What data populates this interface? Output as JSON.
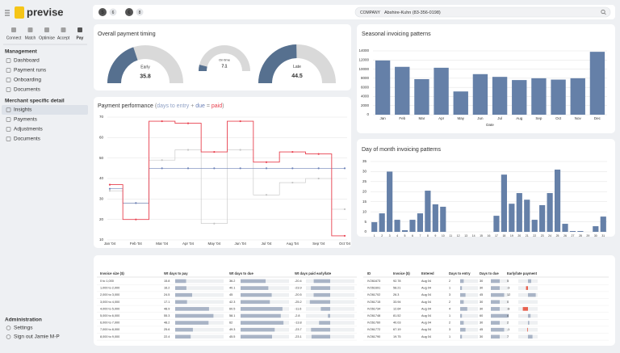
{
  "sidebar": {
    "logo": "previse",
    "steps": [
      "Connect",
      "Match",
      "Optimise",
      "Accept",
      "Pay"
    ],
    "active_step": 4,
    "sections": [
      {
        "title": "Management",
        "items": [
          "Dashboard",
          "Payment runs",
          "Onboarding",
          "Documents"
        ]
      },
      {
        "title": "Merchant specific detail",
        "items": [
          "Insights",
          "Payments",
          "Adjustments",
          "Documents"
        ]
      }
    ],
    "active_item": [
      1,
      0
    ],
    "admin": {
      "title": "Administration",
      "items": [
        "Settings",
        "Sign out Jamie M-P"
      ]
    }
  },
  "topbar": {
    "filters": [
      {
        "symbol": "$",
        "count": 6
      },
      {
        "symbol": "€",
        "count": 8
      }
    ],
    "search_label": "COMPANY",
    "search_value": "Abshire-Kuhn (83-356-0198)"
  },
  "chart_data": [
    {
      "type": "gauge",
      "title": "Overall payment timing",
      "range": [
        0,
        90
      ],
      "color": "#56708f",
      "track_color": "#d9d9d9",
      "gauges": [
        {
          "label": "Early",
          "value": 35.8
        },
        {
          "label": "On time",
          "value": 7.1
        },
        {
          "label": "Late",
          "value": 44.5
        }
      ]
    },
    {
      "type": "line",
      "title": "Payment performance",
      "title_separators": [
        "(",
        " + ",
        " = ",
        ")"
      ],
      "x": [
        "Jan '04",
        "Feb '04",
        "Mar '04",
        "Apr '04",
        "May '04",
        "Jun '04",
        "Jul '04",
        "Aug '04",
        "Sep '04",
        "Oct '04"
      ],
      "ylim": [
        10,
        70
      ],
      "yticks": [
        10,
        20,
        30,
        40,
        50,
        60,
        70
      ],
      "grid": true,
      "line_shape": "step-mid",
      "series": [
        {
          "name": "days to entry",
          "color": "#c4c4c4",
          "values": [
            34,
            28,
            49,
            54,
            18,
            54,
            32,
            38,
            40,
            25
          ]
        },
        {
          "name": "due",
          "color": "#6d82b8",
          "values": [
            35,
            28,
            45,
            45,
            45,
            45,
            45,
            45,
            45,
            45
          ]
        },
        {
          "name": "paid",
          "color": "#e8414f",
          "values": [
            37,
            20,
            68,
            67,
            53,
            68,
            48,
            53,
            52,
            12
          ]
        }
      ]
    },
    {
      "type": "bar",
      "title": "Seasonal invoicing patterns",
      "x_label": "Date",
      "color": "#6580a8",
      "categories": [
        "Jan",
        "Feb",
        "Mar",
        "Apr",
        "May",
        "Jun",
        "Jul",
        "Aug",
        "Sep",
        "Oct",
        "Nov",
        "Dec"
      ],
      "values": [
        11900,
        10500,
        7800,
        10300,
        5100,
        8900,
        8300,
        7600,
        8000,
        7700,
        8000,
        13800
      ],
      "ylim": [
        0,
        14000
      ],
      "yticks": [
        0,
        2000,
        4000,
        6000,
        8000,
        10000,
        12000,
        14000
      ],
      "grid": true
    },
    {
      "type": "bar",
      "title": "Day of month invoicing patterns",
      "color": "#6580a8",
      "categories": [
        "1",
        "2",
        "3",
        "4",
        "5",
        "6",
        "7",
        "8",
        "9",
        "10",
        "11",
        "12",
        "13",
        "14",
        "15",
        "16",
        "17",
        "18",
        "19",
        "20",
        "21",
        "22",
        "23",
        "24",
        "25",
        "26",
        "27",
        "28",
        "29",
        "30",
        "31"
      ],
      "values": [
        4.8,
        9.2,
        30,
        6,
        0.8,
        6,
        9.2,
        20.5,
        13.7,
        12.5,
        0,
        0,
        0,
        0,
        0,
        0,
        8,
        28.5,
        14,
        19.3,
        16,
        6,
        13.3,
        19.3,
        31,
        4,
        0.4,
        0.4,
        0,
        2.8,
        7.6
      ],
      "ylim": [
        0,
        35
      ],
      "yticks": [
        0,
        5,
        10,
        15,
        20,
        25,
        30,
        35
      ],
      "grid": true
    }
  ],
  "tables": [
    {
      "columns": [
        "Invoice size ($)",
        "Wt days to pay",
        "Wt days to due",
        "Wt days paid early/late"
      ],
      "rows": [
        [
          "0 to 1,000",
          15.8,
          36.2,
          -20.4
        ],
        [
          "1,000 to 2,000",
          16.2,
          40.1,
          -23.9
        ],
        [
          "2,000 to 3,000",
          24.5,
          45.0,
          -20.5
        ],
        [
          "3,000 to 4,000",
          17.1,
          42.3,
          -25.2
        ],
        [
          "4,000 to 5,000",
          48.9,
          60.5,
          -11.6
        ],
        [
          "5,000 to 6,000",
          55.3,
          58.1,
          -2.8
        ],
        [
          "6,000 to 7,000",
          48.2,
          62.0,
          -13.8
        ],
        [
          "7,000 to 8,000",
          25.6,
          49.3,
          -23.7
        ],
        [
          "8,000 to 9,000",
          22.4,
          45.5,
          -23.1
        ]
      ]
    },
    {
      "columns": [
        "ID",
        "Invoice ($)",
        "Entered",
        "Days to entry",
        "Days to due",
        "Early/late payment"
      ],
      "rows": [
        [
          "IV261673",
          92.78,
          "Aug 04",
          2,
          30,
          5
        ],
        [
          "IV261691",
          58.21,
          "Aug 04",
          1,
          30,
          -3
        ],
        [
          "IV261702",
          26.3,
          "Aug 04",
          3,
          45,
          12
        ],
        [
          "IV261715",
          33.94,
          "Aug 04",
          2,
          30,
          0
        ],
        [
          "IV261734",
          12.64,
          "Aug 04",
          4,
          30,
          -8
        ],
        [
          "IV261748",
          81.52,
          "Aug 04",
          1,
          60,
          4
        ],
        [
          "IV261760",
          40.03,
          "Aug 04",
          2,
          30,
          2
        ],
        [
          "IV261772",
          67.19,
          "Aug 04",
          3,
          45,
          -1
        ],
        [
          "IV261790",
          19.75,
          "Aug 04",
          1,
          30,
          7
        ]
      ]
    }
  ]
}
